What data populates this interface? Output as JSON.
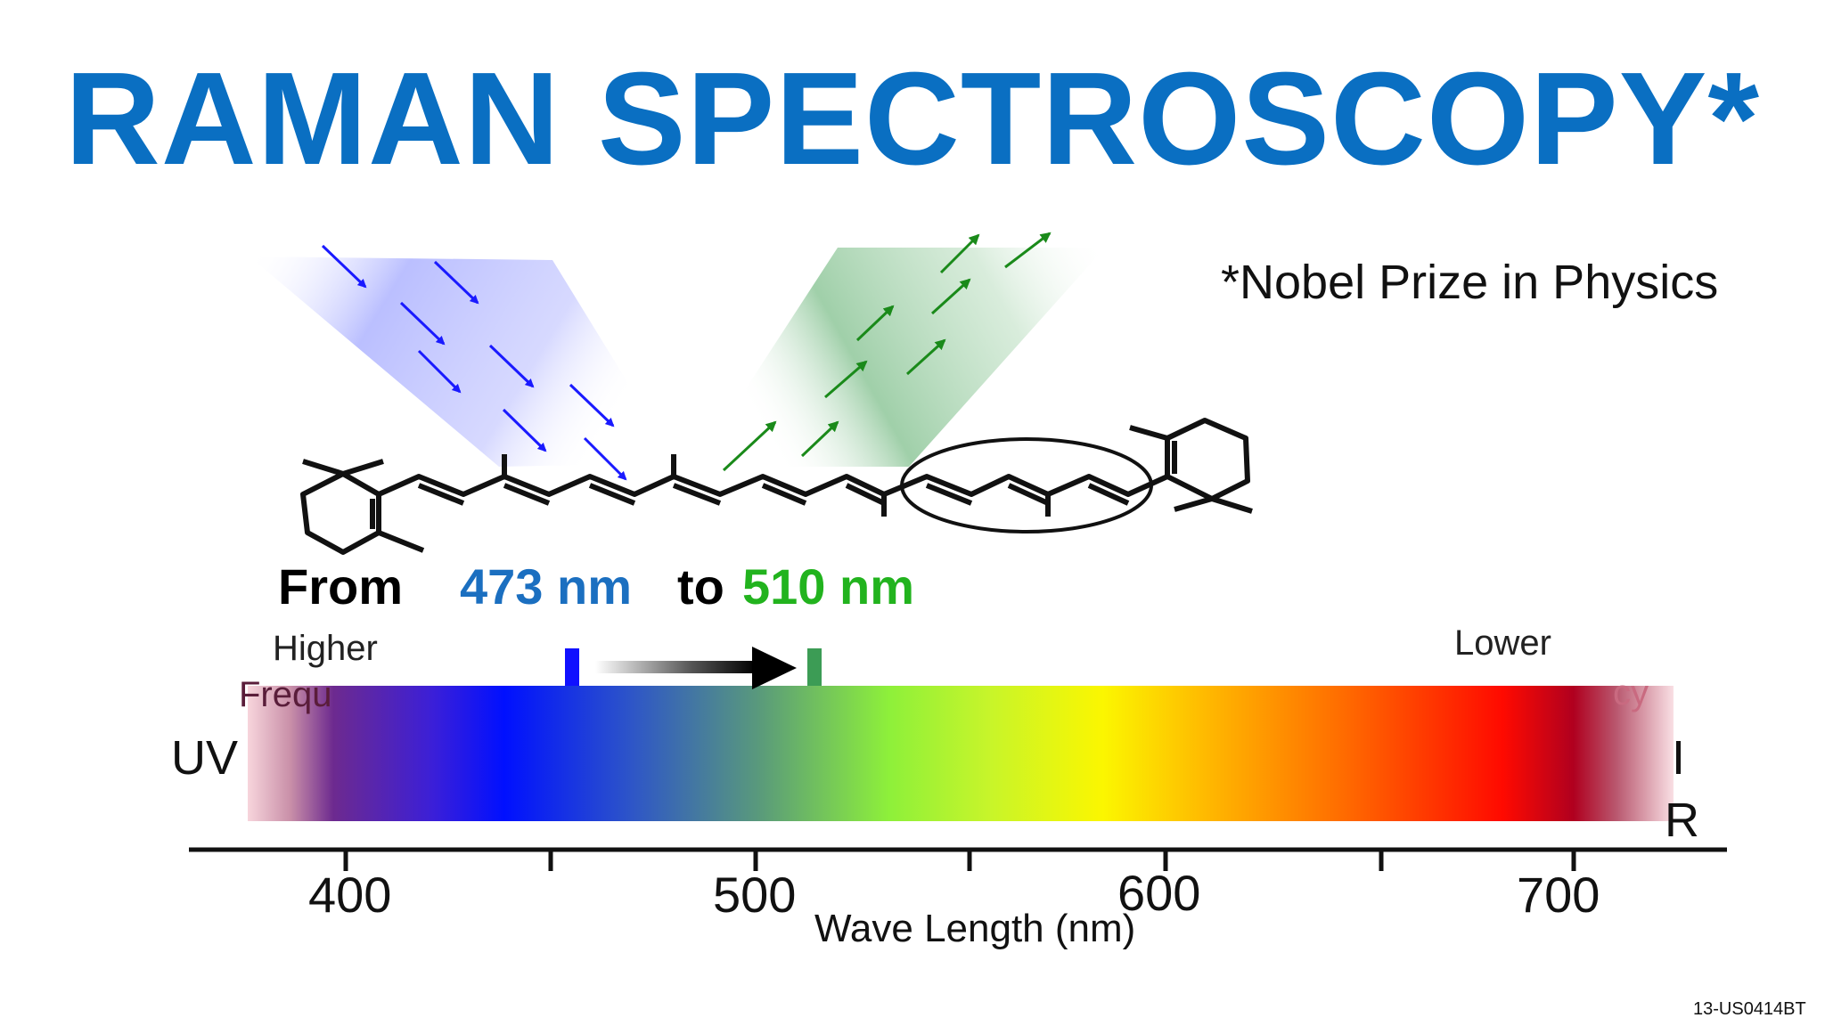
{
  "title": "RAMAN SPECTROSCOPY*",
  "footnote": "*Nobel Prize in Physics",
  "shift": {
    "from_label": "From",
    "from_value": "473 nm",
    "to_label": "to",
    "to_value": "510 nm"
  },
  "spectrum": {
    "higher": "Higher",
    "higher_sub": "Frequ",
    "lower": "Lower",
    "lower_sub": "cy",
    "uv": "UV",
    "ir_top": "I",
    "ir_bottom": "R",
    "ticks": [
      "400",
      "500",
      "600",
      "700"
    ],
    "xlabel": "Wave Length (nm)"
  },
  "code": "13-US0414BT",
  "colors": {
    "title": "#0a6fc2",
    "blue_value": "#1b6fc0",
    "green_value": "#22b31e",
    "incident": "#1a1aff",
    "scattered": "#1a8a1a"
  },
  "icons": [
    "incident-light-arrow",
    "scattered-light-arrow",
    "shift-arrow"
  ]
}
